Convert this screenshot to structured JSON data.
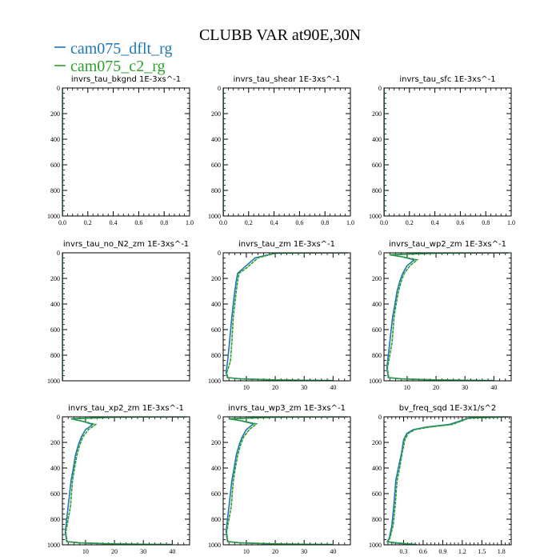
{
  "figure": {
    "title": "CLUBB VAR at90E,30N",
    "legend": [
      {
        "label": "cam075_dflt_rg",
        "color": "#1f77b4"
      },
      {
        "label": "cam075_c2_rg",
        "color": "#2ca02c"
      }
    ]
  },
  "chart_data": [
    {
      "type": "line",
      "title": "invrs_tau_bkgnd   1E-3xs^-1",
      "xlim": [
        0,
        1
      ],
      "ylim": [
        1000,
        0
      ],
      "xticks": [
        "0.0",
        "0.2",
        "0.4",
        "0.6",
        "0.8",
        "1.0"
      ],
      "yticks": [
        "0",
        "200",
        "400",
        "600",
        "800",
        "1000"
      ],
      "series": [
        {
          "name": "cam075_dflt_rg",
          "x": [
            0,
            0
          ],
          "y": [
            0,
            1000
          ]
        },
        {
          "name": "cam075_c2_rg",
          "x": [
            0,
            0
          ],
          "y": [
            0,
            1000
          ]
        }
      ]
    },
    {
      "type": "line",
      "title": "invrs_tau_shear   1E-3xs^-1",
      "xlim": [
        0,
        1
      ],
      "ylim": [
        1000,
        0
      ],
      "xticks": [
        "0.0",
        "0.2",
        "0.4",
        "0.6",
        "0.8",
        "1.0"
      ],
      "yticks": [
        "0",
        "200",
        "400",
        "600",
        "800",
        "1000"
      ],
      "series": [
        {
          "name": "cam075_dflt_rg",
          "x": [
            0,
            0
          ],
          "y": [
            0,
            1000
          ]
        },
        {
          "name": "cam075_c2_rg",
          "x": [
            0,
            0
          ],
          "y": [
            0,
            1000
          ]
        }
      ]
    },
    {
      "type": "line",
      "title": "invrs_tau_sfc   1E-3xs^-1",
      "xlim": [
        0,
        1
      ],
      "ylim": [
        1000,
        0
      ],
      "xticks": [
        "0.0",
        "0.2",
        "0.4",
        "0.6",
        "0.8",
        "1.0"
      ],
      "yticks": [
        "0",
        "200",
        "400",
        "600",
        "800",
        "1000"
      ],
      "series": [
        {
          "name": "cam075_dflt_rg",
          "x": [
            0,
            0
          ],
          "y": [
            0,
            1000
          ]
        },
        {
          "name": "cam075_c2_rg",
          "x": [
            0,
            0
          ],
          "y": [
            0,
            1000
          ]
        }
      ]
    },
    {
      "type": "line",
      "title": "invrs_tau_no_N2_zm   1E-3xs^-1",
      "xlim": [
        0,
        1
      ],
      "ylim": [
        1000,
        0
      ],
      "xticks": [],
      "yticks": [
        "0",
        "200",
        "400",
        "600",
        "800",
        "1000"
      ],
      "series": [
        {
          "name": "cam075_dflt_rg",
          "x": [
            0,
            0
          ],
          "y": [
            0,
            1000
          ]
        },
        {
          "name": "cam075_c2_rg",
          "x": [
            0,
            0
          ],
          "y": [
            0,
            1000
          ]
        }
      ]
    },
    {
      "type": "line",
      "title": "invrs_tau_zm   1E-3xs^-1",
      "xlim": [
        2,
        46
      ],
      "ylim": [
        1000,
        0
      ],
      "xticks": [
        "10",
        "20",
        "30",
        "40"
      ],
      "yticks": [
        "0",
        "200",
        "400",
        "600",
        "800",
        "1000"
      ],
      "series": [
        {
          "name": "cam075_dflt_rg",
          "x": [
            45,
            30,
            20,
            13,
            11,
            9,
            7,
            6.5,
            6,
            5.5,
            5,
            4.2,
            3.5,
            3.0,
            3.5,
            8,
            20,
            40
          ],
          "y": [
            0,
            1,
            3,
            40,
            80,
            120,
            160,
            220,
            300,
            400,
            500,
            700,
            850,
            940,
            975,
            985,
            993,
            998
          ]
        },
        {
          "name": "cam075_c2_rg",
          "x": [
            45,
            30,
            20,
            14,
            12,
            10,
            7.5,
            7,
            6.5,
            6,
            5.5,
            5,
            4.5,
            3.2,
            3.6,
            8,
            20,
            40
          ],
          "y": [
            0,
            1,
            3,
            40,
            80,
            120,
            160,
            220,
            300,
            400,
            500,
            700,
            850,
            940,
            975,
            985,
            993,
            998
          ]
        }
      ]
    },
    {
      "type": "line",
      "title": "invrs_tau_wp2_zm   1E-3xs^-1",
      "xlim": [
        2,
        46
      ],
      "ylim": [
        1000,
        0
      ],
      "xticks": [
        "10",
        "20",
        "30",
        "40"
      ],
      "yticks": [
        "0",
        "200",
        "400",
        "600",
        "800",
        "1000"
      ],
      "series": [
        {
          "name": "cam075_dflt_rg",
          "x": [
            45,
            30,
            20,
            4,
            8,
            12.5,
            10,
            8.5,
            7.5,
            6.5,
            5.8,
            5,
            4,
            3,
            3.5,
            8,
            20,
            40
          ],
          "y": [
            0,
            1,
            3,
            15,
            30,
            55,
            100,
            160,
            220,
            300,
            400,
            500,
            700,
            900,
            975,
            985,
            993,
            998
          ]
        },
        {
          "name": "cam075_c2_rg",
          "x": [
            45,
            30,
            20,
            4,
            8,
            13.5,
            11,
            9,
            8,
            7,
            6.2,
            5.5,
            4.8,
            3.2,
            3.6,
            8,
            20,
            40
          ],
          "y": [
            0,
            1,
            3,
            15,
            30,
            55,
            100,
            160,
            220,
            300,
            400,
            500,
            700,
            900,
            975,
            985,
            993,
            998
          ]
        }
      ]
    },
    {
      "type": "line",
      "title": "invrs_tau_xp2_zm   1E-3xs^-1",
      "xlim": [
        2,
        46
      ],
      "ylim": [
        1000,
        0
      ],
      "xticks": [
        "10",
        "20",
        "30",
        "40"
      ],
      "yticks": [
        "0",
        "200",
        "400",
        "600",
        "800",
        "1000"
      ],
      "series": [
        {
          "name": "cam075_dflt_rg",
          "x": [
            45,
            30,
            20,
            5,
            9,
            12.5,
            10,
            8.5,
            7.5,
            6.5,
            5.8,
            5,
            4,
            3,
            3.5,
            8,
            20,
            40
          ],
          "y": [
            0,
            1,
            3,
            15,
            35,
            60,
            100,
            160,
            220,
            300,
            400,
            500,
            700,
            900,
            975,
            985,
            993,
            998
          ]
        },
        {
          "name": "cam075_c2_rg",
          "x": [
            45,
            30,
            20,
            5,
            9,
            13.5,
            11,
            9,
            8,
            7,
            6.2,
            5.5,
            4.8,
            3.2,
            3.6,
            8,
            20,
            40
          ],
          "y": [
            0,
            1,
            3,
            15,
            35,
            60,
            100,
            160,
            220,
            300,
            400,
            500,
            700,
            900,
            975,
            985,
            993,
            998
          ]
        }
      ]
    },
    {
      "type": "line",
      "title": "invrs_tau_wp3_zm   1E-3xs^-1",
      "xlim": [
        2,
        46
      ],
      "ylim": [
        1000,
        0
      ],
      "xticks": [
        "10",
        "20",
        "30",
        "40"
      ],
      "yticks": [
        "0",
        "200",
        "400",
        "600",
        "800",
        "1000"
      ],
      "series": [
        {
          "name": "cam075_dflt_rg",
          "x": [
            45,
            30,
            20,
            4,
            8,
            12.5,
            10,
            8.5,
            7.5,
            6.5,
            5.8,
            5,
            4,
            3,
            3.5,
            8,
            20,
            40
          ],
          "y": [
            0,
            1,
            3,
            15,
            30,
            55,
            100,
            160,
            220,
            300,
            400,
            500,
            700,
            900,
            975,
            985,
            993,
            998
          ]
        },
        {
          "name": "cam075_c2_rg",
          "x": [
            45,
            30,
            20,
            4,
            8,
            13.5,
            11,
            9,
            8,
            7,
            6.2,
            5.5,
            4.8,
            3.2,
            3.6,
            8,
            20,
            40
          ],
          "y": [
            0,
            1,
            3,
            15,
            30,
            55,
            100,
            160,
            220,
            300,
            400,
            500,
            700,
            900,
            975,
            985,
            993,
            998
          ]
        }
      ]
    },
    {
      "type": "line",
      "title": "bv_freq_sqd   1E-3x1/s^2",
      "xlim": [
        0,
        1.95
      ],
      "ylim": [
        1000,
        0
      ],
      "xticks": [
        "0.3",
        "0.6",
        "0.9",
        "1.2",
        "1.5",
        "1.8"
      ],
      "yticks": [
        "0",
        "200",
        "400",
        "600",
        "800",
        "1000"
      ],
      "series": [
        {
          "name": "cam075_dflt_rg",
          "x": [
            1.9,
            1.6,
            1.3,
            1.0,
            0.65,
            0.45,
            0.35,
            0.3,
            0.27,
            0.22,
            0.18,
            0.15,
            0.12,
            0.08,
            0.05,
            0.15,
            0.35,
            0.5
          ],
          "y": [
            0,
            5,
            10,
            60,
            80,
            100,
            130,
            180,
            280,
            400,
            500,
            700,
            850,
            950,
            975,
            985,
            993,
            998
          ]
        },
        {
          "name": "cam075_c2_rg",
          "x": [
            1.9,
            1.6,
            1.3,
            1.05,
            0.7,
            0.48,
            0.37,
            0.32,
            0.28,
            0.24,
            0.2,
            0.17,
            0.14,
            0.09,
            0.06,
            0.2,
            0.4,
            0.5
          ],
          "y": [
            0,
            5,
            10,
            60,
            80,
            100,
            130,
            180,
            280,
            400,
            500,
            700,
            850,
            950,
            975,
            985,
            993,
            998
          ]
        }
      ]
    }
  ]
}
